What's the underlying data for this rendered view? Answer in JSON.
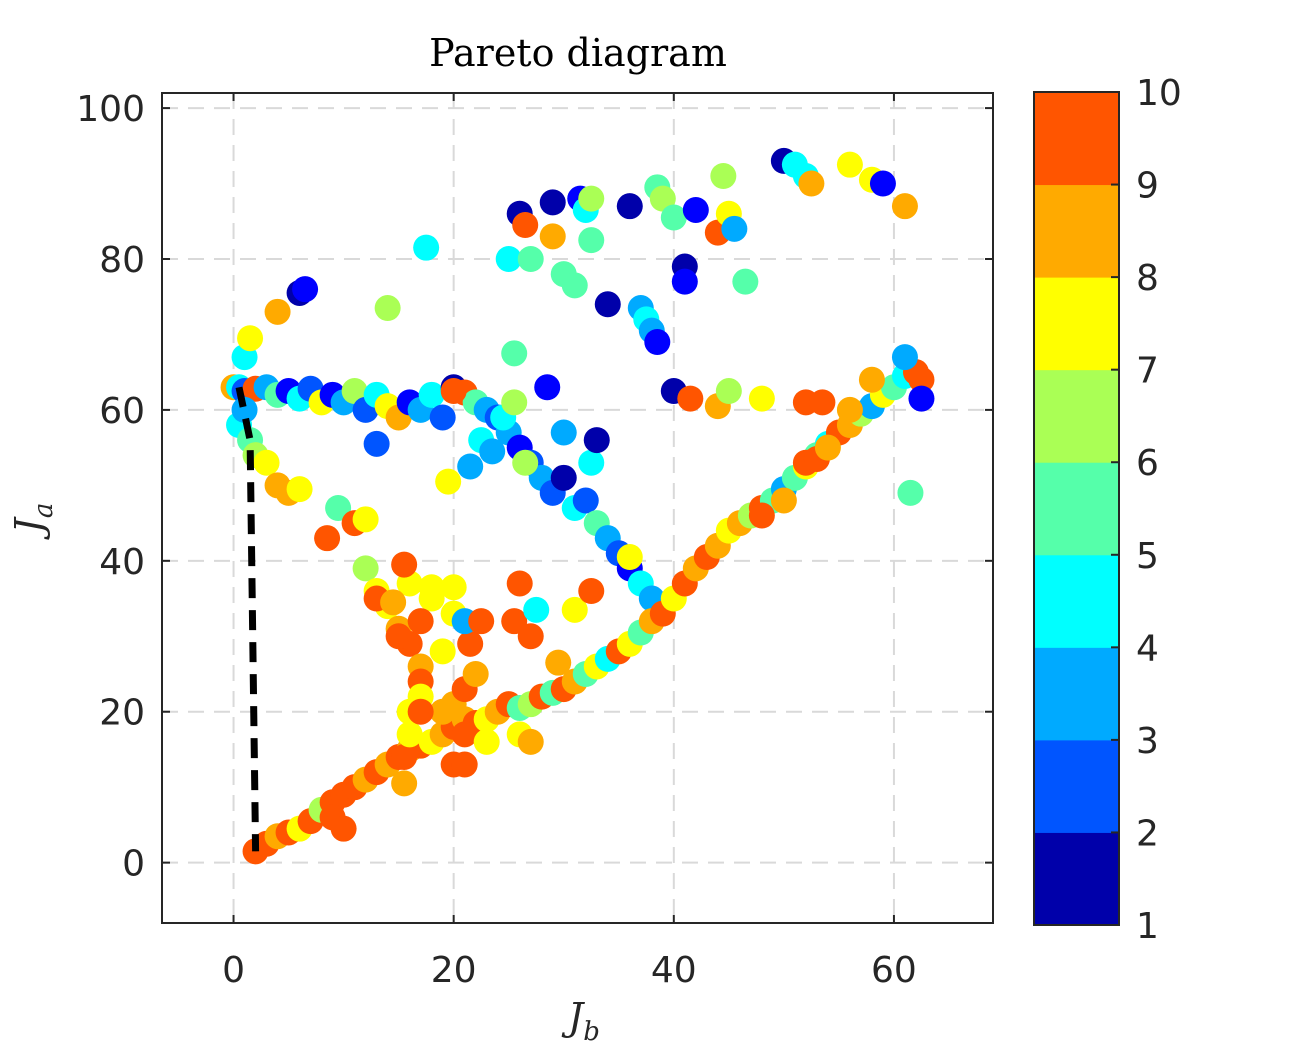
{
  "chart_data": {
    "type": "scatter",
    "title": "Pareto diagram",
    "xlabel": {
      "main": "J",
      "sub": "b"
    },
    "ylabel": {
      "main": "J",
      "sub": "a"
    },
    "xlim": [
      -6.5,
      69
    ],
    "ylim": [
      -8,
      102
    ],
    "xticks": [
      0,
      20,
      40,
      60
    ],
    "yticks": [
      0,
      20,
      40,
      60,
      80,
      100
    ],
    "grid": true,
    "colorbar": {
      "ticks": [
        1,
        2,
        3,
        4,
        5,
        6,
        7,
        8,
        9,
        10
      ],
      "levels": 9,
      "colors": [
        "#0000AA",
        "#0000FF",
        "#0055FF",
        "#00AAFF",
        "#00FFFF",
        "#55FFAA",
        "#AAFF55",
        "#FFFF00",
        "#FFAA00",
        "#FF5500"
      ]
    },
    "pareto_front": [
      [
        0.5,
        63
      ],
      [
        1.5,
        56
      ],
      [
        2,
        1.5
      ]
    ],
    "points": [
      [
        0,
        63,
        9
      ],
      [
        0.5,
        63,
        5
      ],
      [
        1,
        62.5,
        3
      ],
      [
        2,
        62.8,
        10
      ],
      [
        3,
        63,
        4
      ],
      [
        4,
        62,
        6
      ],
      [
        5,
        62.5,
        2
      ],
      [
        6,
        61.5,
        5
      ],
      [
        7,
        62.8,
        3
      ],
      [
        8,
        61,
        8
      ],
      [
        9,
        62,
        2
      ],
      [
        10,
        61,
        4
      ],
      [
        11,
        62.5,
        7
      ],
      [
        12,
        60,
        3
      ],
      [
        13,
        62,
        5
      ],
      [
        14,
        60.5,
        8
      ],
      [
        15,
        59,
        9
      ],
      [
        16,
        61,
        2
      ],
      [
        17,
        60,
        4
      ],
      [
        18,
        62,
        5
      ],
      [
        19,
        59,
        3
      ],
      [
        20,
        63,
        1
      ],
      [
        21,
        62.3,
        10
      ],
      [
        22,
        61,
        6
      ],
      [
        23,
        60,
        4
      ],
      [
        24,
        59,
        3
      ],
      [
        25,
        57,
        4
      ],
      [
        26,
        55,
        2
      ],
      [
        27,
        53,
        3
      ],
      [
        28,
        51,
        4
      ],
      [
        29,
        49,
        3
      ],
      [
        30,
        51,
        1
      ],
      [
        31,
        47,
        5
      ],
      [
        32,
        48,
        3
      ],
      [
        33,
        45,
        6
      ],
      [
        34,
        43,
        4
      ],
      [
        35,
        41,
        3
      ],
      [
        36,
        39,
        2
      ],
      [
        37,
        37,
        5
      ],
      [
        38,
        35,
        4
      ],
      [
        0.5,
        58,
        5
      ],
      [
        1,
        60,
        4
      ],
      [
        1.5,
        56,
        6
      ],
      [
        2,
        54,
        7
      ],
      [
        3,
        53,
        8
      ],
      [
        4,
        50,
        9
      ],
      [
        5,
        49,
        9
      ],
      [
        6,
        49.5,
        8
      ],
      [
        1,
        67,
        5
      ],
      [
        1.5,
        69.5,
        8
      ],
      [
        4,
        73,
        9
      ],
      [
        6,
        75.5,
        1
      ],
      [
        6.5,
        76,
        2
      ],
      [
        9.5,
        47,
        6
      ],
      [
        11,
        45,
        10
      ],
      [
        8.5,
        43,
        10
      ],
      [
        12,
        45.5,
        8
      ],
      [
        13,
        55.5,
        3
      ],
      [
        14,
        73.5,
        7
      ],
      [
        17.5,
        81.5,
        5
      ],
      [
        25,
        80,
        5
      ],
      [
        26,
        86,
        1
      ],
      [
        26.5,
        84.5,
        10
      ],
      [
        27,
        80,
        6
      ],
      [
        29,
        87.5,
        1
      ],
      [
        29,
        83,
        9
      ],
      [
        30,
        78,
        6
      ],
      [
        31,
        76.5,
        6
      ],
      [
        31.5,
        88,
        2
      ],
      [
        32,
        86.5,
        5
      ],
      [
        32.5,
        88,
        7
      ],
      [
        32.5,
        82.5,
        6
      ],
      [
        34,
        74,
        1
      ],
      [
        36,
        87,
        1
      ],
      [
        37,
        73.5,
        4
      ],
      [
        37.5,
        72,
        5
      ],
      [
        38,
        70.5,
        4
      ],
      [
        38.5,
        69,
        2
      ],
      [
        38.5,
        89.5,
        6
      ],
      [
        39,
        88,
        7
      ],
      [
        40,
        85.5,
        6
      ],
      [
        40,
        62.5,
        1
      ],
      [
        41,
        79,
        1
      ],
      [
        41,
        77,
        2
      ],
      [
        42,
        86.5,
        2
      ],
      [
        44,
        83.5,
        10
      ],
      [
        44.5,
        91,
        7
      ],
      [
        45,
        86,
        8
      ],
      [
        45.5,
        84,
        4
      ],
      [
        46.5,
        77,
        6
      ],
      [
        41.5,
        61.5,
        10
      ],
      [
        44,
        60.5,
        9
      ],
      [
        45,
        62.5,
        7
      ],
      [
        48,
        61.5,
        8
      ],
      [
        50,
        93,
        1
      ],
      [
        51,
        92.5,
        5
      ],
      [
        52,
        91,
        5
      ],
      [
        52.5,
        90,
        9
      ],
      [
        56,
        92.5,
        8
      ],
      [
        58,
        90.5,
        8
      ],
      [
        59,
        90,
        2
      ],
      [
        61,
        87,
        9
      ],
      [
        25.5,
        67.5,
        6
      ],
      [
        28.5,
        63,
        2
      ],
      [
        30,
        57,
        4
      ],
      [
        32.5,
        53,
        5
      ],
      [
        33,
        56,
        1
      ],
      [
        36,
        40.5,
        8
      ],
      [
        2,
        1.5,
        10
      ],
      [
        3,
        2.5,
        10
      ],
      [
        4,
        3.5,
        9
      ],
      [
        5,
        4,
        10
      ],
      [
        6,
        4.5,
        8
      ],
      [
        7,
        5.5,
        10
      ],
      [
        8,
        7,
        7
      ],
      [
        9,
        8,
        10
      ],
      [
        10,
        9,
        10
      ],
      [
        11,
        10,
        10
      ],
      [
        12,
        11,
        9
      ],
      [
        13,
        12,
        10
      ],
      [
        14,
        13,
        9
      ],
      [
        15,
        14,
        10
      ],
      [
        16,
        15,
        9
      ],
      [
        17,
        15.5,
        10
      ],
      [
        18,
        16,
        8
      ],
      [
        19,
        17,
        9
      ],
      [
        20,
        18,
        10
      ],
      [
        21,
        19,
        9
      ],
      [
        22,
        18.5,
        10
      ],
      [
        23,
        19,
        8
      ],
      [
        24,
        20,
        9
      ],
      [
        25,
        21,
        10
      ],
      [
        26,
        20.5,
        6
      ],
      [
        27,
        21,
        7
      ],
      [
        28,
        22,
        10
      ],
      [
        29,
        22.5,
        6
      ],
      [
        30,
        23,
        10
      ],
      [
        31,
        24,
        9
      ],
      [
        32,
        25,
        6
      ],
      [
        33,
        26,
        8
      ],
      [
        34,
        27,
        5
      ],
      [
        35,
        28,
        10
      ],
      [
        36,
        29,
        8
      ],
      [
        37,
        30.5,
        6
      ],
      [
        38,
        32,
        9
      ],
      [
        39,
        33,
        10
      ],
      [
        40,
        35,
        8
      ],
      [
        41,
        37,
        10
      ],
      [
        42,
        39,
        9
      ],
      [
        43,
        40.5,
        10
      ],
      [
        44,
        42,
        9
      ],
      [
        45,
        44,
        8
      ],
      [
        46,
        45,
        9
      ],
      [
        47,
        46,
        7
      ],
      [
        48,
        47,
        10
      ],
      [
        49,
        48,
        6
      ],
      [
        50,
        49.5,
        4
      ],
      [
        51,
        51,
        6
      ],
      [
        52,
        52.5,
        8
      ],
      [
        53,
        54,
        6
      ],
      [
        54,
        55.5,
        5
      ],
      [
        55,
        57,
        10
      ],
      [
        56,
        58,
        9
      ],
      [
        57,
        59.5,
        7
      ],
      [
        58,
        60.5,
        4
      ],
      [
        59,
        62,
        8
      ],
      [
        60,
        63,
        6
      ],
      [
        61,
        64.5,
        5
      ],
      [
        62,
        65,
        10
      ],
      [
        62.5,
        64,
        10
      ],
      [
        61,
        67,
        4
      ],
      [
        62.5,
        61.5,
        2
      ],
      [
        61.5,
        49,
        6
      ],
      [
        52,
        61,
        10
      ],
      [
        53.5,
        61,
        10
      ],
      [
        9,
        6,
        10
      ],
      [
        10,
        4.5,
        10
      ],
      [
        15.5,
        10.5,
        9
      ],
      [
        15.5,
        14,
        10
      ],
      [
        20,
        13,
        10
      ],
      [
        21,
        17,
        10
      ],
      [
        23,
        16,
        8
      ],
      [
        26,
        17,
        8
      ],
      [
        27,
        16,
        9
      ],
      [
        21,
        13,
        10
      ],
      [
        48,
        46,
        10
      ],
      [
        50,
        48,
        9
      ],
      [
        52,
        53,
        10
      ],
      [
        53,
        53.5,
        10
      ],
      [
        54,
        55,
        9
      ],
      [
        56,
        60,
        9
      ],
      [
        58,
        64,
        9
      ],
      [
        12,
        39,
        7
      ],
      [
        13,
        36,
        8
      ],
      [
        14,
        34,
        8
      ],
      [
        15,
        31,
        9
      ],
      [
        16,
        29,
        10
      ],
      [
        17,
        26,
        9
      ],
      [
        17,
        24,
        10
      ],
      [
        17,
        22,
        8
      ],
      [
        16,
        20,
        8
      ],
      [
        16,
        17,
        8
      ],
      [
        19,
        20,
        9
      ],
      [
        20,
        21,
        9
      ],
      [
        21,
        23,
        10
      ],
      [
        22,
        25,
        9
      ],
      [
        21.5,
        29,
        10
      ],
      [
        20,
        33,
        8
      ],
      [
        18,
        35,
        8
      ],
      [
        16,
        37,
        8
      ],
      [
        13,
        35,
        10
      ],
      [
        15.5,
        39.5,
        10
      ],
      [
        14.5,
        34.5,
        9
      ],
      [
        15,
        30,
        10
      ],
      [
        17,
        32,
        10
      ],
      [
        18,
        36.5,
        8
      ],
      [
        20,
        36.5,
        8
      ],
      [
        21,
        32,
        4
      ],
      [
        22.5,
        32,
        10
      ],
      [
        25.5,
        32,
        10
      ],
      [
        26,
        37,
        10
      ],
      [
        27,
        30,
        10
      ],
      [
        27.5,
        33.5,
        5
      ],
      [
        29.5,
        26.5,
        9
      ],
      [
        31,
        33.5,
        8
      ],
      [
        32.5,
        36,
        10
      ],
      [
        19,
        28,
        8
      ],
      [
        17,
        20,
        10
      ],
      [
        19.5,
        50.5,
        8
      ],
      [
        20,
        62.5,
        10
      ],
      [
        21.5,
        52.5,
        4
      ],
      [
        22.5,
        56,
        5
      ],
      [
        23.5,
        54.5,
        4
      ],
      [
        24.5,
        59,
        5
      ],
      [
        25.5,
        61,
        7
      ],
      [
        26.5,
        53,
        7
      ]
    ]
  }
}
